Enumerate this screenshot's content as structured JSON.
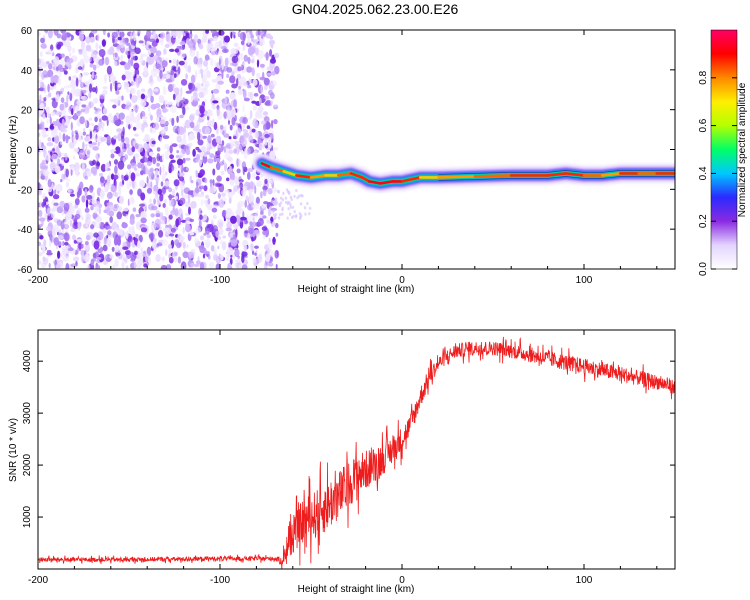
{
  "figure_title": "GN04.2025.062.23.00.E26",
  "colors": {
    "speckle": "#7b2be6",
    "snr_line": "#ee1c1c",
    "colorbar": [
      "#ffffff",
      "#e3d4ff",
      "#8a2be2",
      "#2a2aff",
      "#00c8ff",
      "#00ff66",
      "#b4ff00",
      "#ffee00",
      "#ff8800",
      "#ff0000",
      "#ff0066"
    ]
  },
  "chart_data": [
    {
      "type": "heatmap",
      "title": "",
      "xlabel": "Height of straight line (km)",
      "ylabel": "Frequency (Hz)",
      "xlim": [
        -200,
        150
      ],
      "ylim": [
        -60,
        60
      ],
      "xticks": [
        -200,
        -100,
        0,
        100
      ],
      "yticks": [
        60,
        40,
        20,
        0,
        -20,
        -40,
        -60
      ],
      "colorbar": {
        "label": "Normalized spectral amplitude",
        "range": [
          0,
          1
        ],
        "ticks": [
          "0.0",
          "0.2",
          "0.4",
          "0.6",
          "0.8"
        ]
      },
      "noise_region_x": [
        -200,
        -72
      ],
      "band": {
        "x": [
          -77,
          -72,
          -65,
          -58,
          -50,
          -42,
          -35,
          -28,
          -22,
          -18,
          -12,
          -5,
          0,
          10,
          20,
          40,
          60,
          80,
          90,
          100,
          110,
          120,
          130,
          140,
          150
        ],
        "y": [
          -7,
          -9,
          -11,
          -13,
          -14,
          -13,
          -13,
          -12,
          -14,
          -16,
          -17,
          -16,
          -16,
          -14,
          -14,
          -13.5,
          -13,
          -13,
          -12,
          -13,
          -13,
          -12,
          -12,
          -12,
          -12
        ],
        "peak": [
          1.0,
          0.9,
          0.8,
          0.95,
          0.85,
          0.8,
          0.9,
          0.95,
          0.95,
          1.0,
          1.0,
          1.0,
          0.95,
          0.8,
          0.85,
          0.9,
          0.95,
          0.95,
          0.95,
          0.9,
          0.85,
          0.95,
          0.9,
          0.95,
          0.9
        ]
      }
    },
    {
      "type": "line",
      "title": "",
      "xlabel": "Height of straight line (km)",
      "ylabel": "SNR (10 * v/v)",
      "xlim": [
        -200,
        150
      ],
      "ylim": [
        0,
        4600
      ],
      "xticks": [
        -200,
        -100,
        0,
        100
      ],
      "yticks": [
        1000,
        2000,
        3000,
        4000
      ],
      "series": [
        {
          "x": [
            -200,
            -150,
            -100,
            -70,
            -66,
            -62,
            -55,
            -45,
            -35,
            -25,
            -15,
            -5,
            0,
            5,
            10,
            15,
            20,
            25,
            30,
            40,
            50,
            60,
            80,
            100,
            120,
            140,
            150
          ],
          "y": [
            180,
            180,
            200,
            200,
            150,
            500,
            900,
            1100,
            1400,
            1800,
            2000,
            2300,
            2500,
            2800,
            3300,
            3700,
            3950,
            4100,
            4200,
            4250,
            4250,
            4200,
            4050,
            3900,
            3750,
            3600,
            3500
          ],
          "noise": [
            60,
            60,
            60,
            60,
            120,
            400,
            600,
            700,
            700,
            600,
            500,
            400,
            350,
            300,
            300,
            250,
            200,
            200,
            200,
            200,
            200,
            200,
            220,
            220,
            220,
            200,
            200
          ]
        }
      ]
    }
  ]
}
